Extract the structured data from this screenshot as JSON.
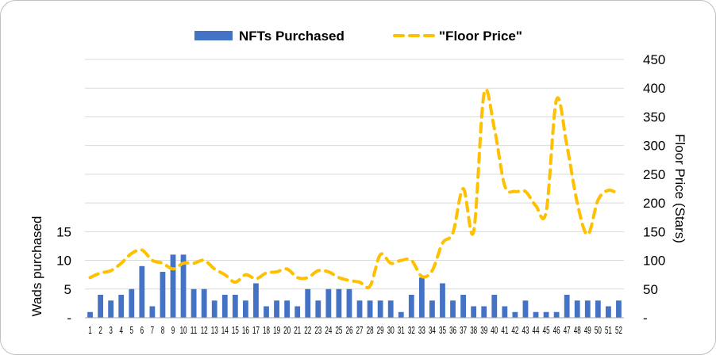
{
  "chart_data": {
    "type": "bar+line",
    "legend": {
      "placement": "top",
      "items": [
        {
          "label": "NFTs Purchased",
          "color": "#4472C4",
          "shape": "bar"
        },
        {
          "label": "\"Floor Price\"",
          "color": "#FFC000",
          "shape": "dashed-line"
        }
      ]
    },
    "ylabel_left": "Wads purchased",
    "ylabel_right": "Floor Price (Stars)",
    "y_left": {
      "ticks": [
        0,
        5,
        10,
        15
      ],
      "tick_labels": [
        "-",
        "5",
        "10",
        "15"
      ],
      "range": [
        0,
        45
      ]
    },
    "y_right": {
      "ticks": [
        0,
        50,
        100,
        150,
        200,
        250,
        300,
        350,
        400,
        450
      ],
      "tick_labels": [
        "-",
        "50",
        "100",
        "150",
        "200",
        "250",
        "300",
        "350",
        "400",
        "450"
      ],
      "range": [
        0,
        450
      ]
    },
    "grid": true,
    "categories": [
      "1",
      "2",
      "3",
      "4",
      "5",
      "6",
      "7",
      "8",
      "9",
      "10",
      "11",
      "12",
      "13",
      "14",
      "15",
      "16",
      "17",
      "18",
      "19",
      "20",
      "21",
      "22",
      "23",
      "24",
      "25",
      "26",
      "27",
      "28",
      "29",
      "30",
      "31",
      "32",
      "33",
      "34",
      "35",
      "36",
      "37",
      "38",
      "39",
      "40",
      "41",
      "42",
      "43",
      "44",
      "45",
      "46",
      "47",
      "48",
      "49",
      "50",
      "51",
      "52"
    ],
    "series": [
      {
        "name": "NFTs Purchased",
        "type": "bar",
        "axis": "left",
        "color": "#4472C4",
        "values": [
          1,
          4,
          3,
          4,
          5,
          9,
          2,
          8,
          11,
          11,
          5,
          5,
          3,
          4,
          4,
          3,
          6,
          2,
          3,
          3,
          2,
          5,
          3,
          5,
          5,
          5,
          3,
          3,
          3,
          3,
          1,
          4,
          7,
          3,
          6,
          3,
          4,
          2,
          2,
          4,
          2,
          1,
          3,
          1,
          1,
          1,
          4,
          3,
          3,
          3,
          2,
          3
        ]
      },
      {
        "name": "\"Floor Price\"",
        "type": "line",
        "axis": "right",
        "color": "#FFC000",
        "values": [
          70,
          78,
          82,
          95,
          112,
          118,
          100,
          95,
          85,
          95,
          95,
          100,
          85,
          75,
          62,
          75,
          68,
          78,
          80,
          85,
          70,
          70,
          82,
          80,
          70,
          65,
          62,
          55,
          110,
          95,
          100,
          100,
          72,
          82,
          130,
          148,
          225,
          150,
          390,
          330,
          230,
          220,
          220,
          195,
          185,
          380,
          300,
          200,
          145,
          205,
          222,
          215
        ]
      }
    ]
  }
}
